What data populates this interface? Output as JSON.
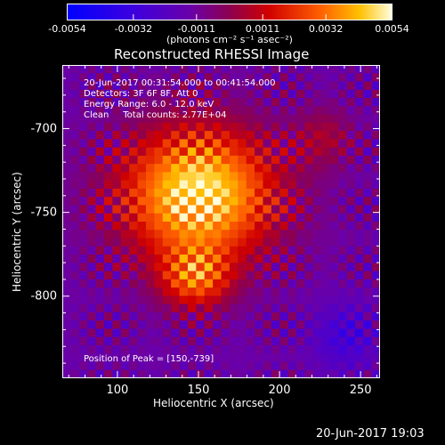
{
  "chart_data": {
    "type": "heatmap",
    "title": "Reconstructed RHESSI Image",
    "xlabel": "Heliocentric X (arcsec)",
    "ylabel": "Heliocentric Y (arcsec)",
    "xlim": [
      66,
      262
    ],
    "ylim": [
      -849,
      -662
    ],
    "x_ticks": [
      "100",
      "150",
      "200",
      "250"
    ],
    "x_tick_values": [
      100,
      150,
      200,
      250
    ],
    "y_ticks": [
      "-700",
      "-750",
      "-800"
    ],
    "y_tick_values": [
      -700,
      -750,
      -800
    ],
    "colorbar": {
      "min": -0.0054,
      "max": 0.0054,
      "tick_labels": [
        "-0.0054",
        "-0.0032",
        "-0.0011",
        "0.0011",
        "0.0032",
        "0.0054"
      ],
      "tick_values": [
        -0.0054,
        -0.0032,
        -0.0011,
        0.0011,
        0.0032,
        0.0054
      ],
      "unit_label": "(photons cm⁻² s⁻¹ asec⁻²)"
    },
    "annotations": {
      "time_range": "20-Jun-2017 00:31:54.000 to 00:41:54.000",
      "detectors": "Detectors: 3F 6F 8F, Att 0",
      "energy": "Energy Range: 6.0 - 12.0 keV",
      "clean": "Clean     Total counts: 2.77E+04",
      "peak": "Position of Peak = [150,-739]"
    },
    "peak_position": [
      150,
      -739
    ],
    "grid": false
  },
  "footer": {
    "timestamp": "20-Jun-2017 19:03"
  }
}
